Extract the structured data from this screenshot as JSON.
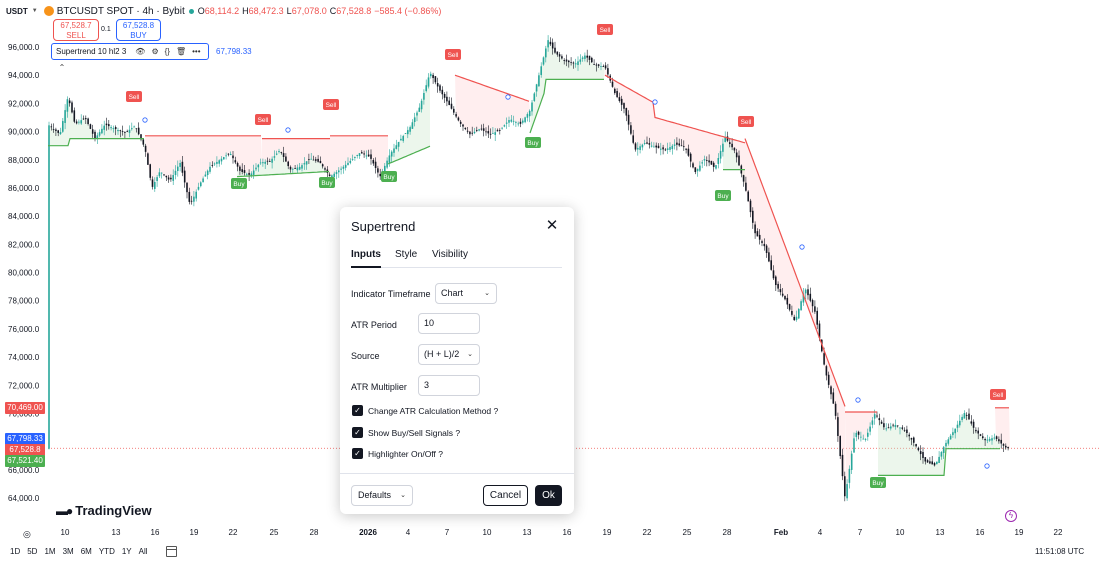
{
  "colors": {
    "sell": "#ef5350",
    "buy": "#4caf50",
    "blue": "#2962ff",
    "candle_up": "#26a69a",
    "candle_down": "#131722"
  },
  "symbol": {
    "base": "USDT",
    "name": "BTCUSDT SPOT · 4h · Bybit",
    "ohlc": [
      {
        "label": "O",
        "value": "68,114.2"
      },
      {
        "label": "H",
        "value": "68,472.3"
      },
      {
        "label": "L",
        "value": "67,078.0"
      },
      {
        "label": "C",
        "value": "67,528.8"
      },
      {
        "label": "",
        "value": "−585.4 (−0.86%)"
      }
    ]
  },
  "trade": {
    "sell_price": "67,528.7",
    "sell_label": "SELL",
    "buy_price": "67,528.8",
    "buy_label": "BUY",
    "spread": "0.1"
  },
  "indicator": {
    "name": "Supertrend 10 hl2 3",
    "value": "67,798.33"
  },
  "price_axis": {
    "ticks": [
      "96,000.0",
      "94,000.0",
      "92,000.0",
      "90,000.0",
      "88,000.0",
      "86,000.0",
      "84,000.0",
      "82,000.0",
      "80,000.0",
      "78,000.0",
      "76,000.0",
      "74,000.0",
      "72,000.0",
      "70,000.0",
      "66,000.0",
      "64,000.0"
    ],
    "tags": [
      {
        "text": "70,469.00",
        "color": "#ef5350"
      },
      {
        "text": "67,798.33",
        "color": "#2962ff"
      },
      {
        "text": "67,528.8",
        "color": "#ef5350"
      },
      {
        "text": "67,521.40",
        "color": "#4caf50"
      }
    ]
  },
  "time_axis": [
    "10",
    "13",
    "16",
    "19",
    "22",
    "25",
    "28",
    "2026",
    "4",
    "7",
    "10",
    "13",
    "16",
    "19",
    "22",
    "25",
    "28",
    "Feb",
    "4",
    "7",
    "10",
    "13",
    "16",
    "19",
    "22"
  ],
  "signals": {
    "sell": "Sell",
    "buy": "Buy"
  },
  "watermark": "TradingView",
  "timeframes": [
    "1D",
    "5D",
    "1M",
    "3M",
    "6M",
    "YTD",
    "1Y",
    "All"
  ],
  "clock": "11:51:08 UTC",
  "dialog": {
    "title": "Supertrend",
    "tabs": [
      "Inputs",
      "Style",
      "Visibility"
    ],
    "fields": {
      "timeframe_label": "Indicator Timeframe",
      "timeframe_value": "Chart",
      "atr_period_label": "ATR Period",
      "atr_period_value": "10",
      "source_label": "Source",
      "source_value": "(H + L)/2",
      "multiplier_label": "ATR Multiplier",
      "multiplier_value": "3"
    },
    "checkboxes": [
      "Change ATR Calculation Method ?",
      "Show Buy/Sell Signals ?",
      "Highlighter On/Off ?"
    ],
    "defaults": "Defaults",
    "cancel": "Cancel",
    "ok": "Ok"
  }
}
